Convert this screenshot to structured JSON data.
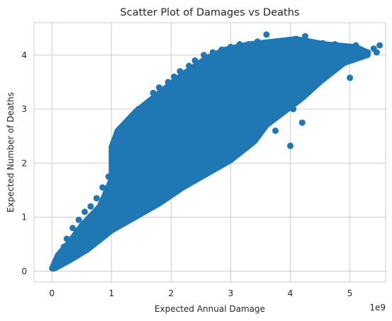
{
  "chart_data": {
    "type": "scatter",
    "title": "Scatter Plot of Damages vs Deaths",
    "xlabel": "Expected Annual Damage",
    "ylabel": "Expected Number of Deaths",
    "x_offset_label": "1e9",
    "xlim": [
      -0.3,
      5.6
    ],
    "ylim": [
      -0.2,
      4.6
    ],
    "x_ticks": [
      0,
      1,
      2,
      3,
      4,
      5
    ],
    "x_tick_labels": [
      "0",
      "1",
      "2",
      "3",
      "4",
      "5"
    ],
    "y_ticks": [
      0,
      1,
      2,
      3,
      4
    ],
    "y_tick_labels": [
      "0",
      "1",
      "2",
      "3",
      "4"
    ],
    "grid": true,
    "series": [
      {
        "color": "#1f77b4",
        "points": [
          [
            0.02,
            0.05
          ],
          [
            0.05,
            0.12
          ],
          [
            0.1,
            0.25
          ],
          [
            0.15,
            0.3
          ],
          [
            0.2,
            0.45
          ],
          [
            0.25,
            0.6
          ],
          [
            0.3,
            0.4
          ],
          [
            0.35,
            0.8
          ],
          [
            0.4,
            0.6
          ],
          [
            0.45,
            0.95
          ],
          [
            0.5,
            0.75
          ],
          [
            0.55,
            1.1
          ],
          [
            0.6,
            0.85
          ],
          [
            0.65,
            1.2
          ],
          [
            0.7,
            0.95
          ],
          [
            0.75,
            1.35
          ],
          [
            0.8,
            1.0
          ],
          [
            0.85,
            1.55
          ],
          [
            0.9,
            1.2
          ],
          [
            0.95,
            1.75
          ],
          [
            1.0,
            1.05
          ],
          [
            1.0,
            1.4
          ],
          [
            1.05,
            2.0
          ],
          [
            1.1,
            1.3
          ],
          [
            1.15,
            2.3
          ],
          [
            1.2,
            1.6
          ],
          [
            1.25,
            2.6
          ],
          [
            1.3,
            1.45
          ],
          [
            1.35,
            2.8
          ],
          [
            1.4,
            1.9
          ],
          [
            1.45,
            3.0
          ],
          [
            1.5,
            1.7
          ],
          [
            1.55,
            2.4
          ],
          [
            1.6,
            3.1
          ],
          [
            1.65,
            1.85
          ],
          [
            1.7,
            3.3
          ],
          [
            1.75,
            2.2
          ],
          [
            1.8,
            3.4
          ],
          [
            1.85,
            2.0
          ],
          [
            1.9,
            2.8
          ],
          [
            1.95,
            3.5
          ],
          [
            2.0,
            2.2
          ],
          [
            2.0,
            3.0
          ],
          [
            2.05,
            3.6
          ],
          [
            2.1,
            2.4
          ],
          [
            2.15,
            3.7
          ],
          [
            2.2,
            2.6
          ],
          [
            2.25,
            3.2
          ],
          [
            2.3,
            3.8
          ],
          [
            2.35,
            2.5
          ],
          [
            2.4,
            3.9
          ],
          [
            2.45,
            2.8
          ],
          [
            2.5,
            3.4
          ],
          [
            2.55,
            4.0
          ],
          [
            2.6,
            2.7
          ],
          [
            2.65,
            3.6
          ],
          [
            2.7,
            4.05
          ],
          [
            2.75,
            2.9
          ],
          [
            2.8,
            3.3
          ],
          [
            2.85,
            4.1
          ],
          [
            2.9,
            3.0
          ],
          [
            2.95,
            3.8
          ],
          [
            3.0,
            4.15
          ],
          [
            3.05,
            3.2
          ],
          [
            3.1,
            3.5
          ],
          [
            3.15,
            4.2
          ],
          [
            3.2,
            3.4
          ],
          [
            3.25,
            3.9
          ],
          [
            3.3,
            4.2
          ],
          [
            3.35,
            3.3
          ],
          [
            3.4,
            3.7
          ],
          [
            3.45,
            4.25
          ],
          [
            3.5,
            3.5
          ],
          [
            3.55,
            4.0
          ],
          [
            3.6,
            4.38
          ],
          [
            3.62,
            3.0
          ],
          [
            3.65,
            3.6
          ],
          [
            3.7,
            4.2
          ],
          [
            3.75,
            2.6
          ],
          [
            3.8,
            2.9
          ],
          [
            3.85,
            4.25
          ],
          [
            3.9,
            3.1
          ],
          [
            3.95,
            3.7
          ],
          [
            4.0,
            2.32
          ],
          [
            4.05,
            3.0
          ],
          [
            4.1,
            4.3
          ],
          [
            4.15,
            3.3
          ],
          [
            4.2,
            2.75
          ],
          [
            4.25,
            4.35
          ],
          [
            4.3,
            3.4
          ],
          [
            4.35,
            3.8
          ],
          [
            4.4,
            4.2
          ],
          [
            4.45,
            3.6
          ],
          [
            4.5,
            4.0
          ],
          [
            4.55,
            4.22
          ],
          [
            4.6,
            3.85
          ],
          [
            4.65,
            4.1
          ],
          [
            4.7,
            3.9
          ],
          [
            4.75,
            4.2
          ],
          [
            4.8,
            4.0
          ],
          [
            4.85,
            4.1
          ],
          [
            4.95,
            3.95
          ],
          [
            5.0,
            3.58
          ],
          [
            5.05,
            4.08
          ],
          [
            5.1,
            4.18
          ],
          [
            5.3,
            4.05
          ],
          [
            5.4,
            4.12
          ],
          [
            5.45,
            4.05
          ],
          [
            5.5,
            4.18
          ]
        ]
      }
    ]
  }
}
